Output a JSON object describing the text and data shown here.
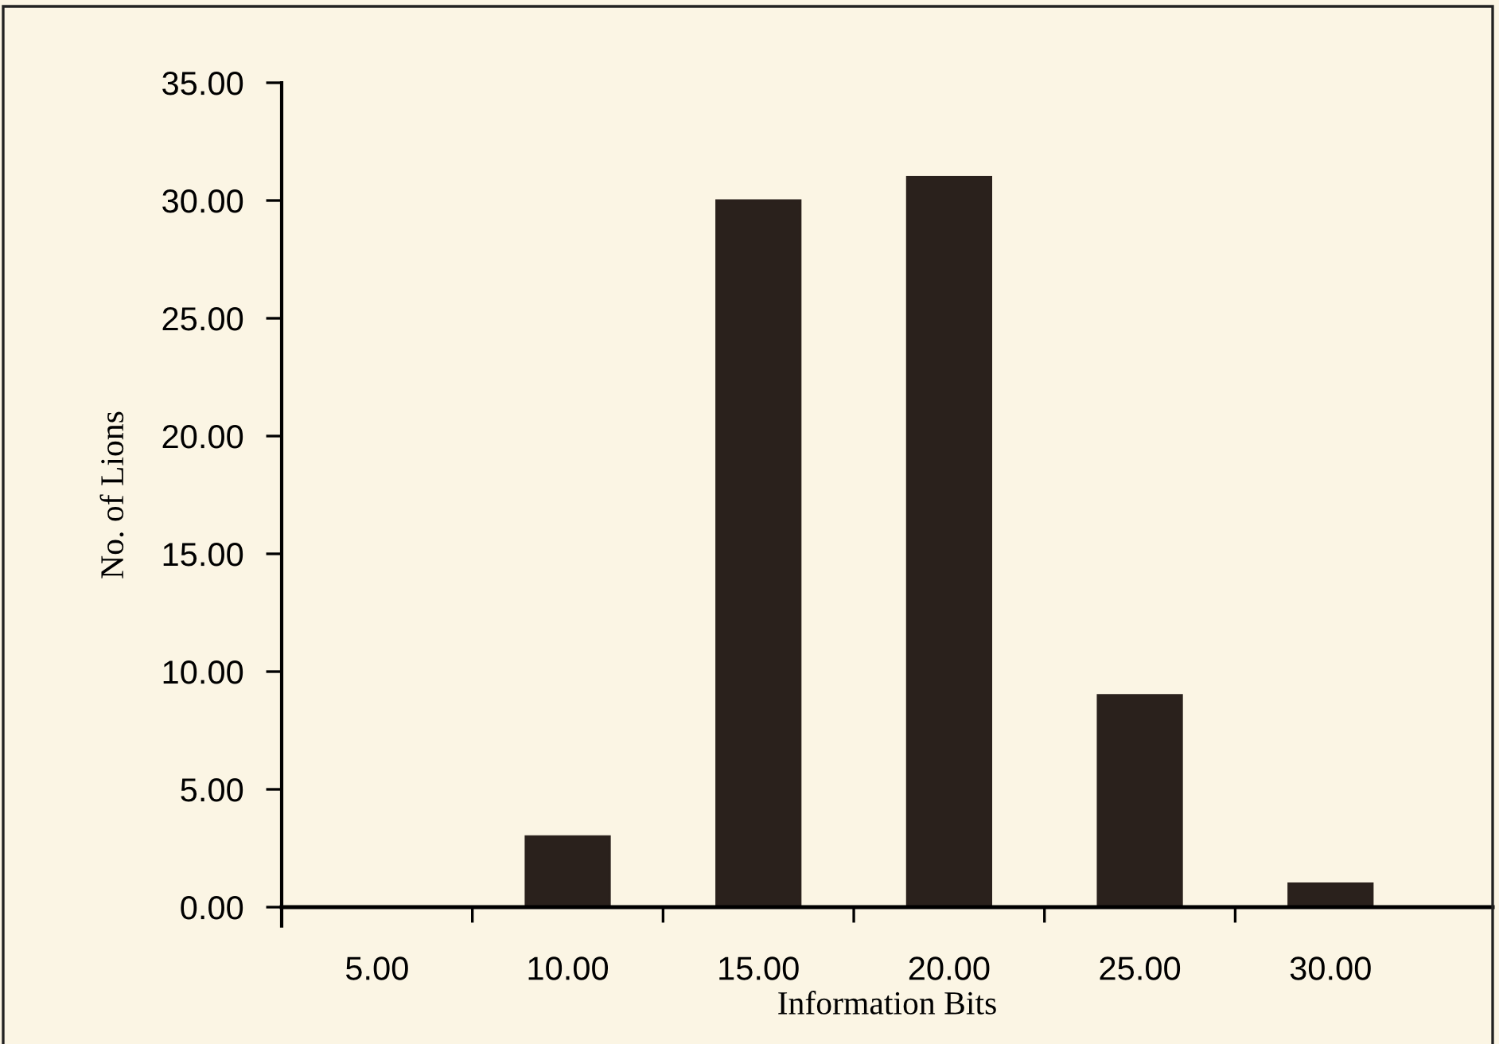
{
  "chart_data": {
    "type": "bar",
    "xlabel": "Information Bits",
    "ylabel": "No. of Lions",
    "categories": [
      "5.00",
      "10.00",
      "15.00",
      "20.00",
      "25.00",
      "30.00"
    ],
    "values": [
      0,
      3,
      30,
      31,
      9,
      1
    ],
    "color": "#2a211c",
    "ylim": [
      0,
      35
    ],
    "yticks": [
      {
        "value": 0,
        "label": "0.00"
      },
      {
        "value": 5,
        "label": "5.00"
      },
      {
        "value": 10,
        "label": "10.00"
      },
      {
        "value": 15,
        "label": "15.00"
      },
      {
        "value": 20,
        "label": "20.00"
      },
      {
        "value": 25,
        "label": "25.00"
      },
      {
        "value": 30,
        "label": "30.00"
      },
      {
        "value": 35,
        "label": "35.00"
      }
    ],
    "grid": false
  }
}
